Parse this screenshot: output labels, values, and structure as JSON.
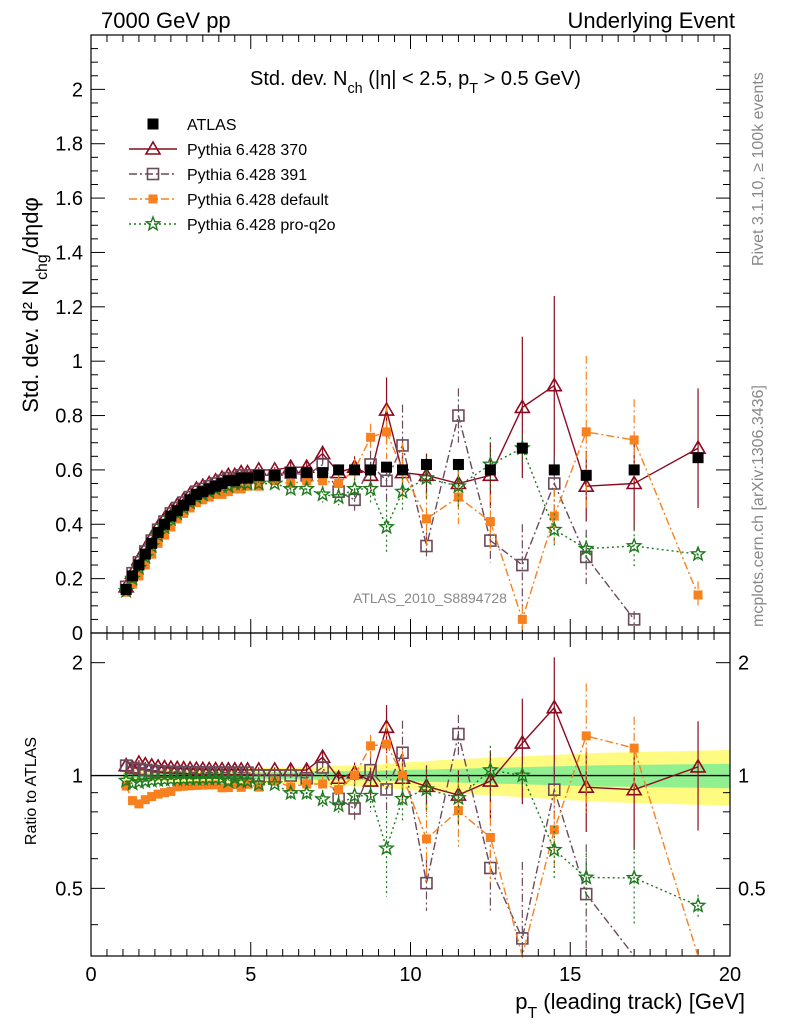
{
  "header": {
    "left": "7000 GeV pp",
    "right": "Underlying Event"
  },
  "side_labels": {
    "rivet": "Rivet 3.1.10, ≥ 100k events",
    "mcplots": "mcplots.cern.ch [arXiv:1306.3436]"
  },
  "colors": {
    "atlas": "#000000",
    "p370": "#8b0a1f",
    "p391": "#6b4a5b",
    "pdefault": "#f7811e",
    "pq2o": "#1f7a1f",
    "band_inner": "#90f090",
    "band_outer": "#fffb80"
  },
  "chart_data": [
    {
      "type": "scatter",
      "panel": "main",
      "title": "Std. dev. N_ch (|η| < 2.5, p_T > 0.5 GeV)",
      "ylabel": "Std. dev. d² N_chg/dηdφ",
      "xlabel": "",
      "xlim": [
        0,
        20
      ],
      "ylim": [
        0,
        2.2
      ],
      "yticks": [
        0,
        0.2,
        0.4,
        0.6,
        0.8,
        1,
        1.2,
        1.4,
        1.6,
        1.8,
        2
      ],
      "xticks": [
        0,
        5,
        10,
        15,
        20
      ],
      "watermark": "ATLAS_2010_S8894728",
      "legend_position": "top-left",
      "series": [
        {
          "name": "ATLAS",
          "key": "atlas",
          "marker": "filled-square",
          "line": "none",
          "x": [
            1.1,
            1.3,
            1.5,
            1.7,
            1.9,
            2.1,
            2.3,
            2.5,
            2.7,
            2.9,
            3.1,
            3.3,
            3.5,
            3.7,
            3.9,
            4.1,
            4.3,
            4.5,
            4.7,
            4.9,
            5.25,
            5.75,
            6.25,
            6.75,
            7.25,
            7.75,
            8.25,
            8.75,
            9.25,
            9.75,
            10.5,
            11.5,
            12.5,
            13.5,
            14.5,
            15.5,
            17,
            19
          ],
          "y": [
            0.16,
            0.21,
            0.25,
            0.29,
            0.33,
            0.37,
            0.4,
            0.43,
            0.45,
            0.47,
            0.49,
            0.51,
            0.52,
            0.53,
            0.54,
            0.55,
            0.56,
            0.56,
            0.57,
            0.57,
            0.58,
            0.58,
            0.59,
            0.59,
            0.59,
            0.6,
            0.6,
            0.6,
            0.61,
            0.6,
            0.62,
            0.62,
            0.6,
            0.68,
            0.6,
            0.58,
            0.6,
            0.645
          ]
        },
        {
          "name": "Pythia 6.428 370",
          "key": "p370",
          "marker": "open-triangle",
          "line": "solid",
          "x": [
            1.1,
            1.3,
            1.5,
            1.7,
            1.9,
            2.1,
            2.3,
            2.5,
            2.7,
            2.9,
            3.1,
            3.3,
            3.5,
            3.7,
            3.9,
            4.1,
            4.3,
            4.5,
            4.7,
            4.9,
            5.25,
            5.75,
            6.25,
            6.75,
            7.25,
            7.75,
            8.25,
            8.75,
            9.25,
            9.75,
            10.5,
            11.5,
            12.5,
            13.5,
            14.5,
            15.5,
            17,
            19
          ],
          "y": [
            0.17,
            0.22,
            0.27,
            0.31,
            0.35,
            0.39,
            0.42,
            0.45,
            0.47,
            0.49,
            0.51,
            0.53,
            0.54,
            0.55,
            0.56,
            0.57,
            0.58,
            0.58,
            0.59,
            0.59,
            0.6,
            0.6,
            0.61,
            0.61,
            0.66,
            0.59,
            0.61,
            0.58,
            0.82,
            0.59,
            0.58,
            0.55,
            0.58,
            0.83,
            0.91,
            0.54,
            0.55,
            0.68
          ],
          "err": [
            0.005,
            0.005,
            0.005,
            0.005,
            0.005,
            0.005,
            0.005,
            0.005,
            0.005,
            0.005,
            0.005,
            0.005,
            0.005,
            0.005,
            0.005,
            0.005,
            0.01,
            0.01,
            0.01,
            0.01,
            0.01,
            0.01,
            0.02,
            0.02,
            0.03,
            0.03,
            0.04,
            0.05,
            0.12,
            0.07,
            0.08,
            0.09,
            0.12,
            0.26,
            0.33,
            0.13,
            0.17,
            0.22
          ]
        },
        {
          "name": "Pythia 6.428 391",
          "key": "p391",
          "marker": "open-square",
          "line": "dashdot",
          "x": [
            1.1,
            1.3,
            1.5,
            1.7,
            1.9,
            2.1,
            2.3,
            2.5,
            2.7,
            2.9,
            3.1,
            3.3,
            3.5,
            3.7,
            3.9,
            4.1,
            4.3,
            4.5,
            4.7,
            4.9,
            5.25,
            5.75,
            6.25,
            6.75,
            7.25,
            7.75,
            8.25,
            8.75,
            9.25,
            9.75,
            10.5,
            11.5,
            12.5,
            13.5,
            14.5,
            15.5,
            17
          ],
          "y": [
            0.17,
            0.22,
            0.26,
            0.3,
            0.34,
            0.38,
            0.41,
            0.44,
            0.46,
            0.48,
            0.5,
            0.52,
            0.53,
            0.54,
            0.55,
            0.56,
            0.57,
            0.57,
            0.58,
            0.58,
            0.58,
            0.58,
            0.59,
            0.58,
            0.62,
            0.52,
            0.49,
            0.62,
            0.56,
            0.69,
            0.32,
            0.8,
            0.34,
            0.25,
            0.55,
            0.28,
            0.05
          ],
          "err": [
            0.005,
            0.005,
            0.005,
            0.005,
            0.005,
            0.005,
            0.005,
            0.005,
            0.005,
            0.005,
            0.005,
            0.005,
            0.005,
            0.005,
            0.005,
            0.005,
            0.01,
            0.01,
            0.01,
            0.01,
            0.01,
            0.01,
            0.02,
            0.02,
            0.03,
            0.03,
            0.04,
            0.05,
            0.07,
            0.15,
            0.05,
            0.1,
            0.08,
            0.15,
            0.1,
            0.1,
            0.03
          ]
        },
        {
          "name": "Pythia 6.428 default",
          "key": "pdefault",
          "marker": "filled-square-small",
          "line": "dashdot",
          "x": [
            1.1,
            1.3,
            1.5,
            1.7,
            1.9,
            2.1,
            2.3,
            2.5,
            2.7,
            2.9,
            3.1,
            3.3,
            3.5,
            3.7,
            3.9,
            4.1,
            4.3,
            4.5,
            4.7,
            4.9,
            5.25,
            5.75,
            6.25,
            6.75,
            7.25,
            7.75,
            8.25,
            8.75,
            9.25,
            9.75,
            10.5,
            11.5,
            12.5,
            13.5,
            14.5,
            15.5,
            17,
            19
          ],
          "y": [
            0.15,
            0.18,
            0.21,
            0.25,
            0.29,
            0.33,
            0.36,
            0.39,
            0.42,
            0.44,
            0.46,
            0.48,
            0.49,
            0.5,
            0.51,
            0.51,
            0.52,
            0.53,
            0.53,
            0.54,
            0.54,
            0.56,
            0.55,
            0.56,
            0.56,
            0.55,
            0.6,
            0.72,
            0.74,
            0.6,
            0.42,
            0.5,
            0.41,
            0.05,
            0.43,
            0.74,
            0.71,
            0.14
          ],
          "err": [
            0.005,
            0.005,
            0.005,
            0.005,
            0.005,
            0.005,
            0.005,
            0.005,
            0.005,
            0.005,
            0.005,
            0.005,
            0.005,
            0.005,
            0.005,
            0.005,
            0.01,
            0.01,
            0.01,
            0.01,
            0.01,
            0.01,
            0.02,
            0.02,
            0.03,
            0.03,
            0.04,
            0.05,
            0.1,
            0.1,
            0.1,
            0.1,
            0.1,
            0.05,
            0.1,
            0.28,
            0.15,
            0.05
          ]
        },
        {
          "name": "Pythia 6.428 pro-q2o",
          "key": "pq2o",
          "marker": "open-star",
          "line": "dotted",
          "x": [
            1.1,
            1.3,
            1.5,
            1.7,
            1.9,
            2.1,
            2.3,
            2.5,
            2.7,
            2.9,
            3.1,
            3.3,
            3.5,
            3.7,
            3.9,
            4.1,
            4.3,
            4.5,
            4.7,
            4.9,
            5.25,
            5.75,
            6.25,
            6.75,
            7.25,
            7.75,
            8.25,
            8.75,
            9.25,
            9.75,
            10.5,
            11.5,
            12.5,
            13.5,
            14.5,
            15.5,
            17,
            19
          ],
          "y": [
            0.155,
            0.2,
            0.24,
            0.28,
            0.32,
            0.36,
            0.39,
            0.42,
            0.44,
            0.46,
            0.48,
            0.5,
            0.51,
            0.52,
            0.53,
            0.54,
            0.54,
            0.55,
            0.55,
            0.55,
            0.55,
            0.55,
            0.53,
            0.53,
            0.51,
            0.5,
            0.53,
            0.53,
            0.39,
            0.52,
            0.57,
            0.54,
            0.62,
            0.68,
            0.38,
            0.31,
            0.32,
            0.29
          ],
          "err": [
            0.005,
            0.005,
            0.005,
            0.005,
            0.005,
            0.005,
            0.005,
            0.005,
            0.005,
            0.005,
            0.005,
            0.005,
            0.005,
            0.005,
            0.005,
            0.005,
            0.01,
            0.01,
            0.01,
            0.01,
            0.01,
            0.01,
            0.02,
            0.02,
            0.03,
            0.03,
            0.04,
            0.05,
            0.1,
            0.07,
            0.08,
            0.08,
            0.1,
            0.05,
            0.06,
            0.05,
            0.08,
            0.02
          ]
        }
      ]
    },
    {
      "type": "scatter",
      "panel": "ratio",
      "ylabel": "Ratio to ATLAS",
      "xlabel": "p_T (leading track) [GeV]",
      "xlim": [
        0,
        20
      ],
      "ylim": [
        0.33,
        2.4
      ],
      "yscale": "log",
      "yticks": [
        0.5,
        1,
        2
      ],
      "xticks": [
        0,
        5,
        10,
        15,
        20
      ],
      "reference_line": 1,
      "band_inner": {
        "x": [
          1.0,
          3.0,
          5.0,
          7.0,
          9.0,
          10.0,
          11.0,
          12.0,
          13.0,
          14.0,
          15.0,
          16.0,
          18.0,
          20.0
        ],
        "half_width": [
          0.015,
          0.015,
          0.02,
          0.025,
          0.03,
          0.035,
          0.04,
          0.045,
          0.05,
          0.055,
          0.06,
          0.065,
          0.07,
          0.075
        ]
      },
      "band_outer": {
        "x": [
          1.0,
          3.0,
          5.0,
          7.0,
          9.0,
          10.0,
          11.0,
          12.0,
          13.0,
          14.0,
          15.0,
          16.0,
          18.0,
          20.0
        ],
        "half_width": [
          0.03,
          0.035,
          0.045,
          0.055,
          0.07,
          0.085,
          0.1,
          0.11,
          0.12,
          0.13,
          0.14,
          0.15,
          0.16,
          0.17
        ]
      }
    }
  ]
}
